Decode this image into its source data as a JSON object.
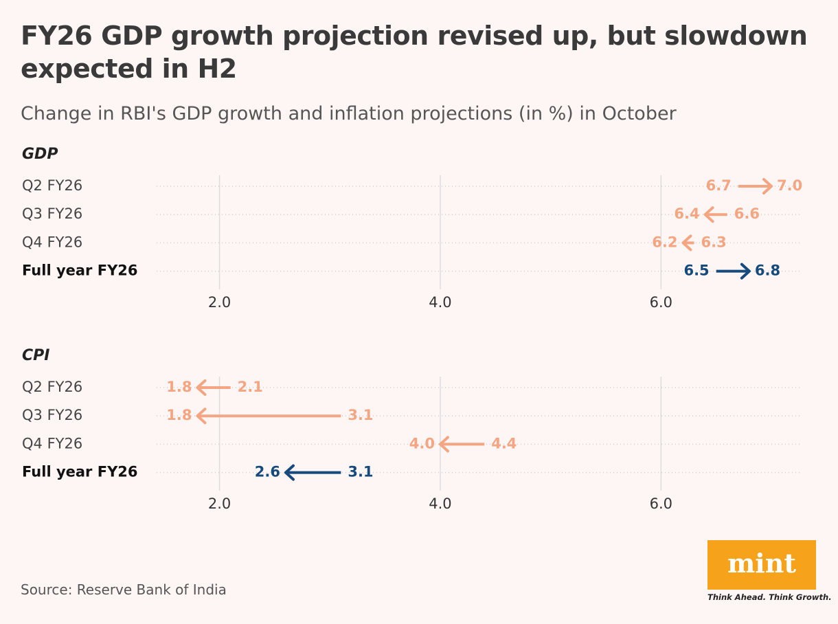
{
  "title": "FY26 GDP growth projection revised up, but slowdown expected in H2",
  "subtitle": "Change in RBI's GDP growth and inflation projections (in %) in October",
  "source": "Source: Reserve Bank of India",
  "logo": {
    "name": "mint",
    "tagline": "Think Ahead. Think Growth."
  },
  "chart_data": [
    {
      "type": "arrow",
      "title": "GDP",
      "categories": [
        "Q2 FY26",
        "Q3 FY26",
        "Q4 FY26",
        "Full year FY26"
      ],
      "colors": [
        "#f4a582",
        "#f4a582",
        "#f4a582",
        "#174a7c"
      ],
      "bold": [
        false,
        false,
        false,
        true
      ],
      "series": [
        {
          "values": [
            6.7,
            6.6,
            6.3,
            6.5
          ],
          "value_labels": [
            "6.7",
            "6.6",
            "6.3",
            "6.5"
          ]
        },
        {
          "values": [
            7.0,
            6.4,
            6.2,
            6.8
          ],
          "value_labels": [
            "7.0",
            "6.4",
            "6.2",
            "6.8"
          ]
        }
      ],
      "xlim": [
        1.43,
        7.28
      ],
      "xticks": [
        {
          "value": 2,
          "label": "2.0"
        },
        {
          "value": 4,
          "label": "4.0"
        },
        {
          "value": 6,
          "label": "6.0"
        }
      ],
      "grid": true
    },
    {
      "type": "arrow",
      "title": "CPI",
      "categories": [
        "Q2 FY26",
        "Q3 FY26",
        "Q4 FY26",
        "Full year FY26"
      ],
      "colors": [
        "#f4a582",
        "#f4a582",
        "#f4a582",
        "#174a7c"
      ],
      "bold": [
        false,
        false,
        false,
        true
      ],
      "series": [
        {
          "values": [
            2.1,
            3.1,
            4.4,
            3.1
          ],
          "value_labels": [
            "2.1",
            "3.1",
            "4.4",
            "3.1"
          ]
        },
        {
          "values": [
            1.8,
            1.8,
            4.0,
            2.6
          ],
          "value_labels": [
            "1.8",
            "1.8",
            "4.0",
            "2.6"
          ]
        }
      ],
      "xlim": [
        1.43,
        7.28
      ],
      "xticks": [
        {
          "value": 2,
          "label": "2.0"
        },
        {
          "value": 4,
          "label": "4.0"
        },
        {
          "value": 6,
          "label": "6.0"
        }
      ],
      "grid": true
    }
  ]
}
